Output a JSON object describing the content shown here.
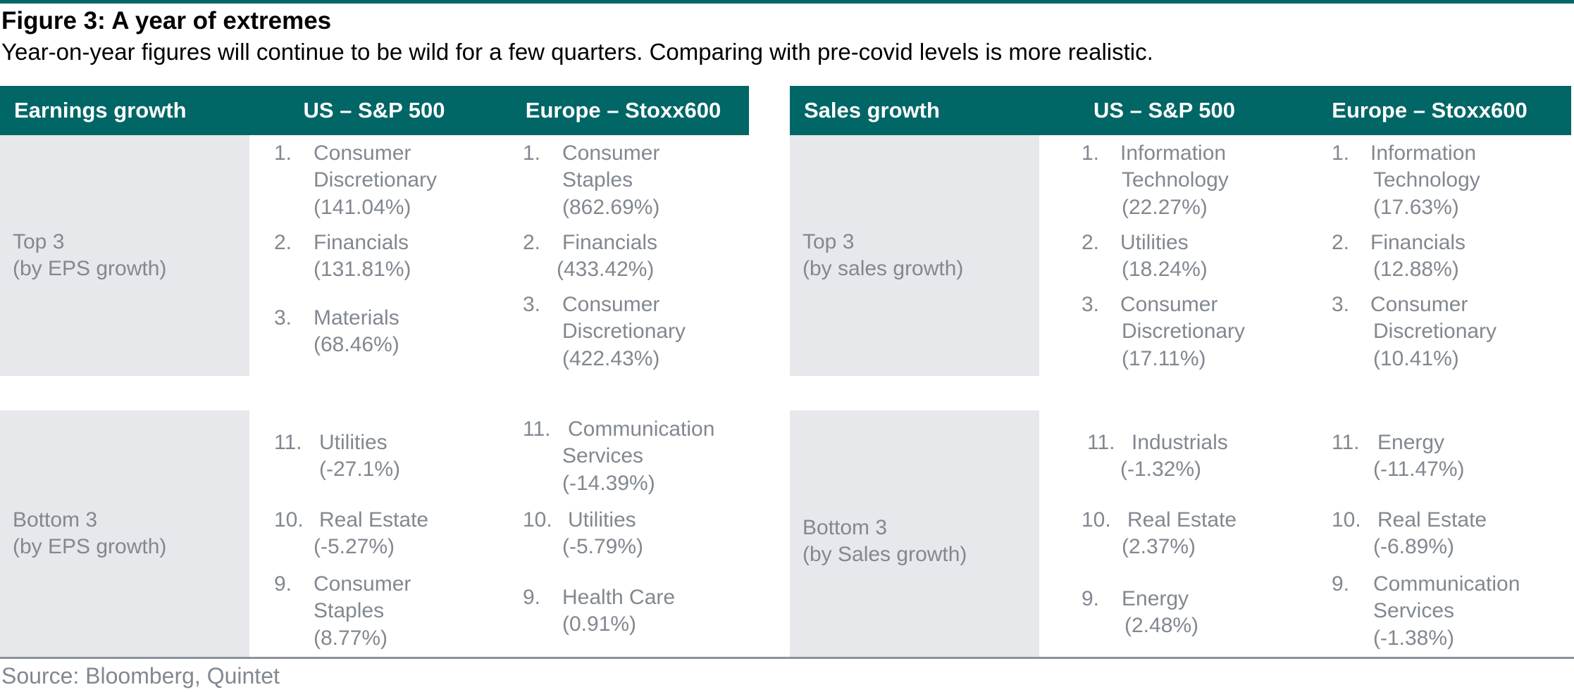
{
  "figure": {
    "title": "Figure 3: A year of extremes",
    "subtitle": "Year-on-year figures will continue to be wild for a few quarters. Comparing with pre-covid levels is more realistic."
  },
  "earnings": {
    "header": {
      "col1": "Earnings growth",
      "col2": "US – S&P 500",
      "col3": "Europe – Stoxx600"
    },
    "top_label": {
      "line1": "Top 3",
      "line2": "(by EPS growth)"
    },
    "bottom_label": {
      "line1": "Bottom 3",
      "line2": "(by EPS growth)"
    },
    "us_top": [
      {
        "rank": "1.",
        "lines": [
          "Consumer",
          "Discretionary",
          "(141.04%)"
        ]
      },
      {
        "rank": "2.",
        "lines": [
          "Financials",
          "(131.81%)"
        ]
      },
      {
        "rank": "3.",
        "lines": [
          "Materials",
          "(68.46%)"
        ]
      }
    ],
    "eu_top": [
      {
        "rank": "1.",
        "lines": [
          "Consumer",
          "Staples",
          "(862.69%)"
        ]
      },
      {
        "rank": "2.",
        "lines": [
          "Financials",
          "(433.42%)"
        ]
      },
      {
        "rank": "3.",
        "lines": [
          "Consumer",
          "Discretionary",
          "(422.43%)"
        ]
      }
    ],
    "us_bottom": [
      {
        "rank": "11.",
        "lines": [
          "Utilities",
          "(-27.1%)"
        ]
      },
      {
        "rank": "10.",
        "lines": [
          "Real Estate",
          "(-5.27%)"
        ]
      },
      {
        "rank": "9.",
        "lines": [
          "Consumer",
          "Staples",
          "(8.77%)"
        ]
      }
    ],
    "eu_bottom": [
      {
        "rank": "11.",
        "lines": [
          "Communication",
          "Services",
          "(-14.39%)"
        ]
      },
      {
        "rank": "10.",
        "lines": [
          "Utilities",
          "(-5.79%)"
        ]
      },
      {
        "rank": "9.",
        "lines": [
          "Health Care",
          "(0.91%)"
        ]
      }
    ]
  },
  "sales": {
    "header": {
      "col1": "Sales growth",
      "col2": "US – S&P 500",
      "col3": "Europe – Stoxx600"
    },
    "top_label": {
      "line1": "Top 3",
      "line2": "(by sales growth)"
    },
    "bottom_label": {
      "line1": "Bottom 3",
      "line2": "(by Sales growth)"
    },
    "us_top": [
      {
        "rank": "1.",
        "lines": [
          "Information",
          "Technology",
          "(22.27%)"
        ]
      },
      {
        "rank": "2.",
        "lines": [
          "Utilities",
          "(18.24%)"
        ]
      },
      {
        "rank": "3.",
        "lines": [
          "Consumer",
          "Discretionary",
          "(17.11%)"
        ]
      }
    ],
    "eu_top": [
      {
        "rank": "1.",
        "lines": [
          "Information",
          "Technology",
          "(17.63%)"
        ]
      },
      {
        "rank": "2.",
        "lines": [
          "Financials",
          "(12.88%)"
        ]
      },
      {
        "rank": "3.",
        "lines": [
          "Consumer",
          "Discretionary",
          "(10.41%)"
        ]
      }
    ],
    "us_bottom": [
      {
        "rank": "11.",
        "lines": [
          "Industrials",
          "(-1.32%)"
        ]
      },
      {
        "rank": "10.",
        "lines": [
          "Real Estate",
          "(2.37%)"
        ]
      },
      {
        "rank": "9.",
        "lines": [
          "Energy",
          "(2.48%)"
        ]
      }
    ],
    "eu_bottom": [
      {
        "rank": "11.",
        "lines": [
          "Energy",
          "(-11.47%)"
        ]
      },
      {
        "rank": "10.",
        "lines": [
          "Real Estate",
          "(-6.89%)"
        ]
      },
      {
        "rank": "9.",
        "lines": [
          "Communication",
          "Services",
          "(-1.38%)"
        ]
      }
    ]
  },
  "source": "Source: Bloomberg, Quintet",
  "colors": {
    "header_bg": "#006666",
    "label_bg": "#e6e8ec",
    "body_text": "#828890"
  }
}
